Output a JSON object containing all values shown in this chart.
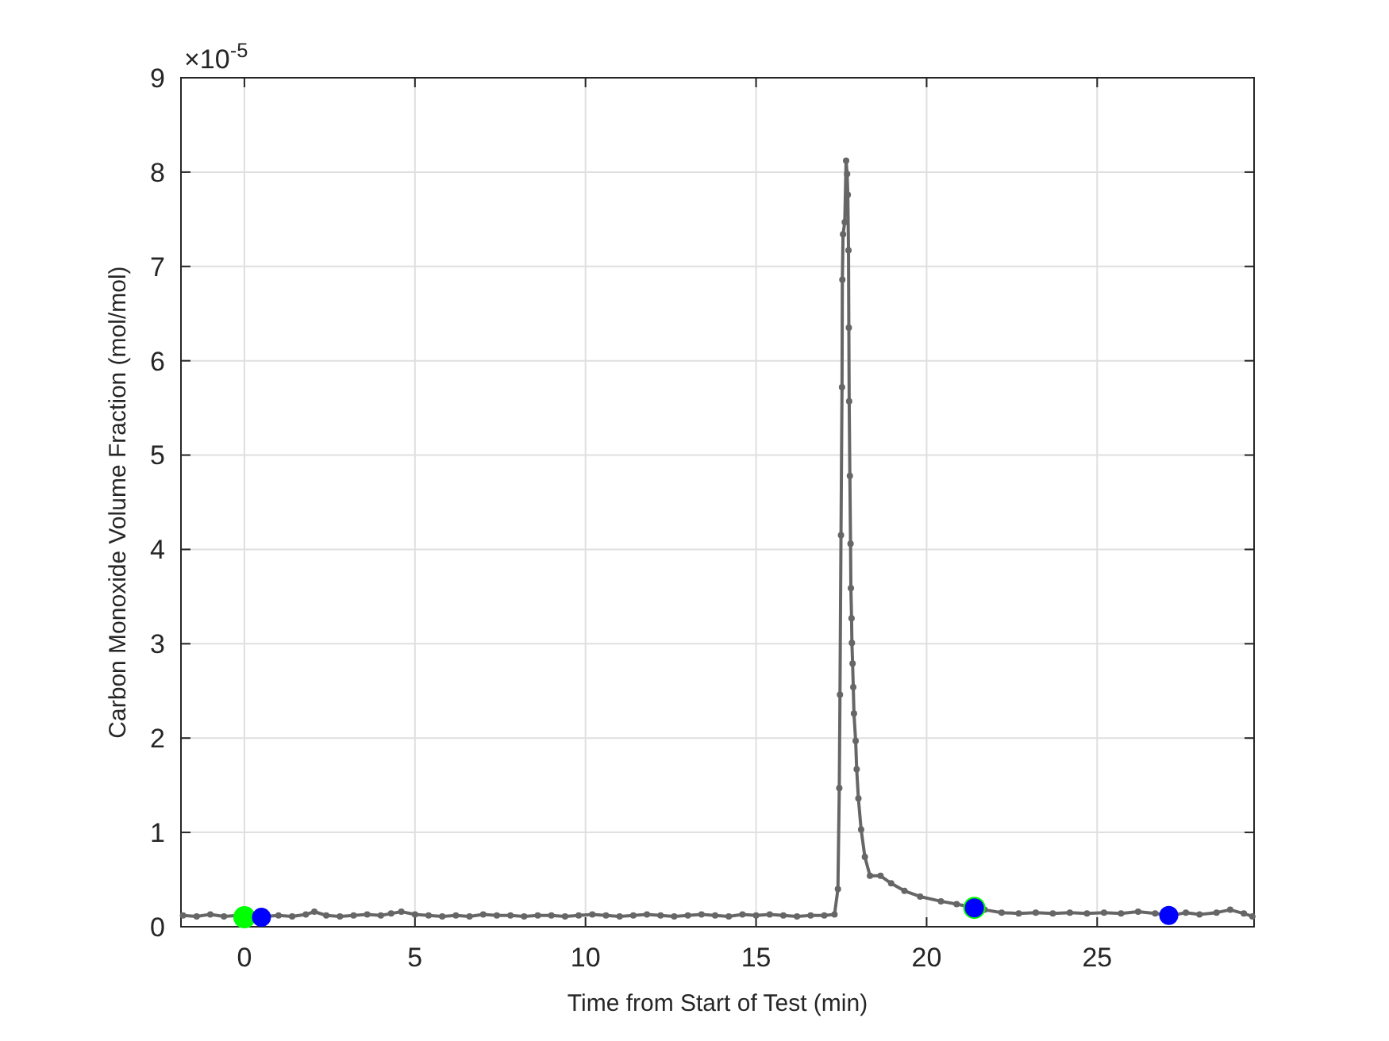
{
  "chart_data": {
    "type": "line",
    "xlabel": "Time from Start of Test (min)",
    "ylabel": "Carbon Monoxide Volume Fraction (mol/mol)",
    "annotations": [
      "×10$^{-5}$"
    ],
    "xlim": [
      -1.86,
      29.6
    ],
    "ylim": [
      0,
      9
    ],
    "xticks": [
      0,
      5,
      10,
      15,
      20,
      25
    ],
    "yticks": [
      0,
      1,
      2,
      3,
      4,
      5,
      6,
      7,
      8,
      9
    ],
    "grid": true,
    "series": [
      {
        "color": "#666666",
        "marker": "circle",
        "x": [
          -1.8,
          -1.4,
          -1.0,
          -0.6,
          -0.2,
          0.2,
          0.6,
          1.0,
          1.4,
          1.8,
          2.05,
          2.4,
          2.8,
          3.2,
          3.6,
          4.0,
          4.3,
          4.6,
          5.0,
          5.4,
          5.8,
          6.2,
          6.6,
          7.0,
          7.4,
          7.8,
          8.2,
          8.6,
          9.0,
          9.4,
          9.8,
          10.2,
          10.6,
          11.0,
          11.4,
          11.8,
          12.2,
          12.6,
          13.0,
          13.4,
          13.8,
          14.2,
          14.6,
          15.0,
          15.4,
          15.8,
          16.2,
          16.6,
          17.0,
          17.3,
          17.4,
          17.44,
          17.46,
          17.49,
          17.52,
          17.53,
          17.55,
          17.6,
          17.64,
          17.67,
          17.69,
          17.71,
          17.72,
          17.73,
          17.75,
          17.77,
          17.78,
          17.8,
          17.81,
          17.83,
          17.85,
          17.87,
          17.92,
          17.95,
          18.0,
          18.08,
          18.19,
          18.34,
          18.65,
          18.96,
          19.35,
          19.81,
          20.42,
          20.88,
          21.29,
          21.7,
          22.2,
          22.7,
          23.2,
          23.7,
          24.2,
          24.7,
          25.2,
          25.7,
          26.2,
          26.7,
          27.2,
          27.6,
          28.0,
          28.5,
          28.9,
          29.3,
          29.55
        ],
        "values": [
          0.12,
          0.11,
          0.13,
          0.11,
          0.12,
          0.1,
          0.11,
          0.12,
          0.11,
          0.13,
          0.16,
          0.12,
          0.11,
          0.12,
          0.13,
          0.12,
          0.14,
          0.16,
          0.13,
          0.12,
          0.11,
          0.12,
          0.11,
          0.13,
          0.12,
          0.12,
          0.11,
          0.12,
          0.12,
          0.11,
          0.12,
          0.13,
          0.12,
          0.11,
          0.12,
          0.13,
          0.12,
          0.11,
          0.12,
          0.13,
          0.12,
          0.11,
          0.13,
          0.12,
          0.13,
          0.12,
          0.11,
          0.12,
          0.12,
          0.13,
          0.4,
          1.47,
          2.46,
          4.15,
          5.72,
          6.86,
          7.34,
          7.47,
          8.12,
          7.98,
          7.76,
          7.17,
          6.35,
          5.57,
          4.78,
          4.06,
          3.59,
          3.27,
          3.01,
          2.79,
          2.54,
          2.26,
          1.97,
          1.67,
          1.36,
          1.03,
          0.74,
          0.54,
          0.54,
          0.46,
          0.38,
          0.32,
          0.27,
          0.24,
          0.21,
          0.18,
          0.15,
          0.14,
          0.15,
          0.14,
          0.15,
          0.14,
          0.15,
          0.14,
          0.16,
          0.14,
          0.12,
          0.15,
          0.13,
          0.15,
          0.18,
          0.14,
          0.11
        ]
      },
      {
        "type": "scatter",
        "color": "#00ff00",
        "marker": "circle",
        "x": [
          0,
          21.4
        ],
        "values": [
          0.1,
          0.2
        ]
      },
      {
        "type": "scatter",
        "color": "#0000ff",
        "marker": "circle",
        "x": [
          0.5,
          21.4,
          27.1
        ],
        "values": [
          0.1,
          0.2,
          0.12
        ]
      }
    ]
  }
}
